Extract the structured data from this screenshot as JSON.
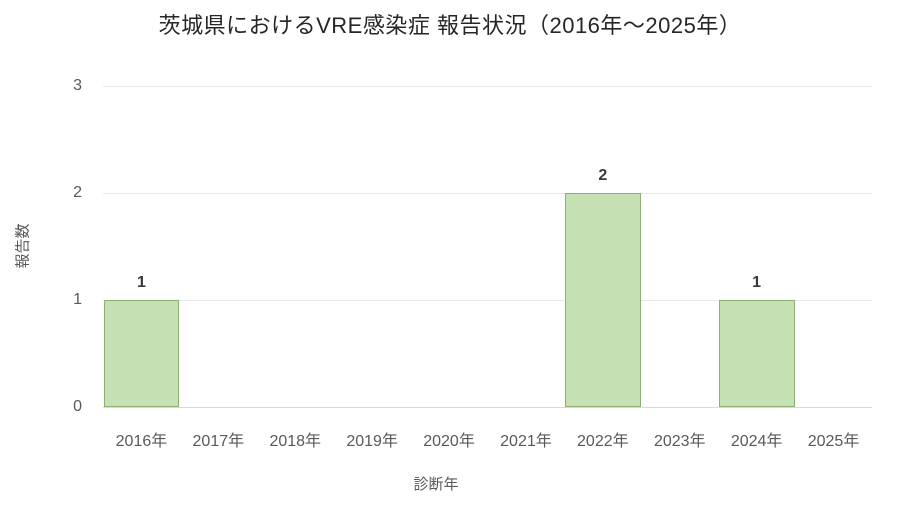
{
  "chart_data": {
    "type": "bar",
    "title": "茨城県におけるVRE感染症 報告状況（2016年～2025年）",
    "categories": [
      "2016年",
      "2017年",
      "2018年",
      "2019年",
      "2020年",
      "2021年",
      "2022年",
      "2023年",
      "2024年",
      "2025年"
    ],
    "values": [
      1,
      0,
      0,
      0,
      0,
      0,
      2,
      0,
      1,
      0
    ],
    "value_labels": [
      "1",
      "",
      "",
      "",
      "",
      "",
      "2",
      "",
      "1",
      ""
    ],
    "xlabel": "診断年",
    "ylabel": "報告数",
    "ylim": [
      0,
      3
    ],
    "yticks": [
      "0",
      "1",
      "2",
      "3"
    ],
    "grid": "horizontal",
    "legend": "none",
    "colors": {
      "bar_fill": "#c5e0b2",
      "bar_border": "#8db06f",
      "gridline": "#e8e8e8",
      "axis_line": "#d9d9d9",
      "tick_text": "#595959",
      "axis_title_text": "#595959",
      "value_label_text": "#3a3a3a",
      "title_text": "#262626"
    }
  }
}
